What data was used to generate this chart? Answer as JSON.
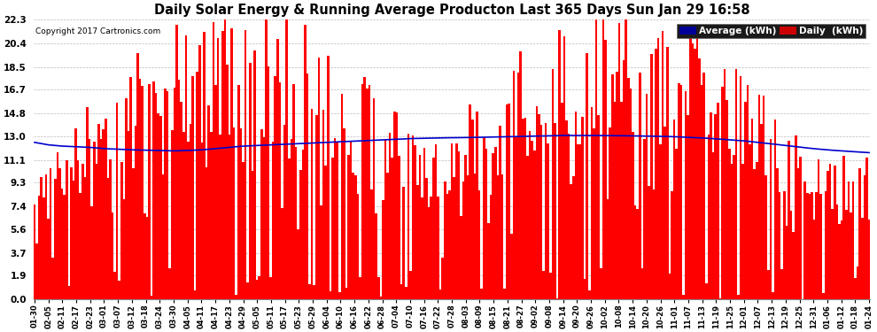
{
  "title": "Daily Solar Energy & Running Average Producton Last 365 Days Sun Jan 29 16:58",
  "copyright": "Copyright 2017 Cartronics.com",
  "bar_color": "#ff0000",
  "avg_color": "#0000cc",
  "bg_color": "#ffffff",
  "plot_bg_color": "#ffffff",
  "grid_color": "#aaaaaa",
  "yticks": [
    0.0,
    1.9,
    3.7,
    5.6,
    7.4,
    9.3,
    11.1,
    13.0,
    14.8,
    16.7,
    18.5,
    20.4,
    22.3
  ],
  "ylim_max": 22.3,
  "legend_avg_label": "Average (kWh)",
  "legend_daily_label": "Daily  (kWh)",
  "legend_avg_bg": "#000099",
  "legend_daily_bg": "#cc0000",
  "xtick_labels": [
    "01-30",
    "02-05",
    "02-11",
    "02-17",
    "02-23",
    "03-01",
    "03-07",
    "03-12",
    "03-18",
    "03-24",
    "03-30",
    "04-05",
    "04-11",
    "04-17",
    "04-23",
    "04-29",
    "05-05",
    "05-11",
    "05-17",
    "05-23",
    "05-29",
    "06-04",
    "06-10",
    "06-16",
    "06-22",
    "06-28",
    "07-04",
    "07-10",
    "07-16",
    "07-22",
    "07-28",
    "08-03",
    "08-09",
    "08-15",
    "08-21",
    "08-27",
    "09-02",
    "09-08",
    "09-14",
    "09-20",
    "09-26",
    "10-02",
    "10-08",
    "10-14",
    "10-20",
    "10-26",
    "11-01",
    "11-07",
    "11-13",
    "11-19",
    "11-25",
    "12-01",
    "12-07",
    "12-13",
    "12-19",
    "12-25",
    "12-31",
    "01-06",
    "01-12",
    "01-18",
    "01-24"
  ],
  "num_days": 365,
  "avg_values": [
    12.5,
    12.3,
    12.2,
    12.15,
    12.1,
    12.0,
    11.95,
    11.9,
    11.88,
    11.85,
    11.82,
    11.85,
    11.9,
    12.0,
    12.1,
    12.2,
    12.25,
    12.3,
    12.35,
    12.4,
    12.45,
    12.5,
    12.55,
    12.6,
    12.65,
    12.7,
    12.75,
    12.8,
    12.82,
    12.85,
    12.87,
    12.88,
    12.9,
    12.92,
    12.95,
    12.97,
    13.0,
    13.02,
    13.05,
    13.05,
    13.05,
    13.04,
    13.03,
    13.02,
    13.0,
    12.98,
    12.95,
    12.9,
    12.85,
    12.78,
    12.7,
    12.62,
    12.5,
    12.38,
    12.25,
    12.12,
    12.0,
    11.9,
    11.82,
    11.75,
    11.68
  ]
}
